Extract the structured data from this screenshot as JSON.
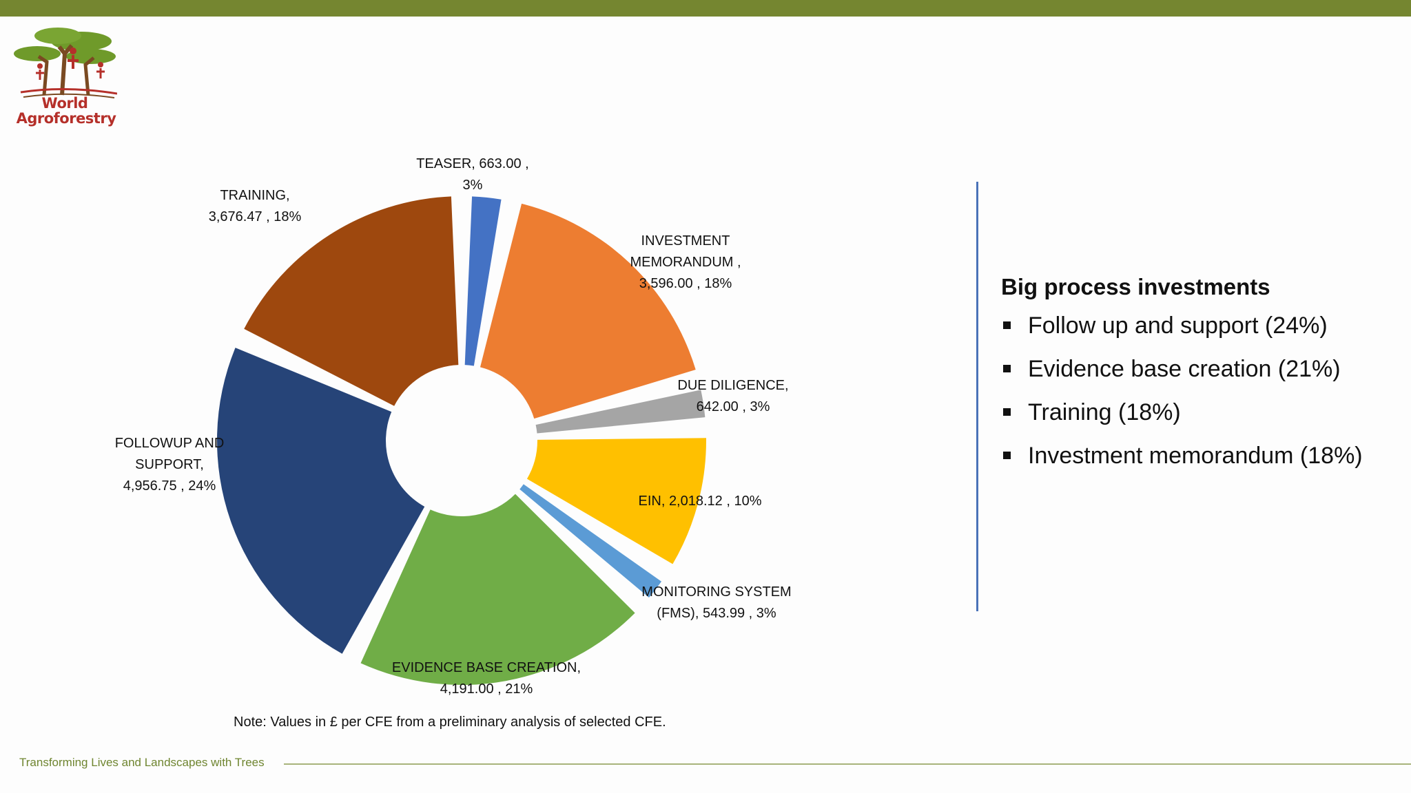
{
  "colors": {
    "top_bar": "#758630",
    "accent_line": "#4a72b8",
    "footer_text": "#6f8530"
  },
  "logo": {
    "line1": "World",
    "line2": "Agroforestry"
  },
  "chart_data": {
    "type": "pie",
    "exploded": true,
    "slices": [
      {
        "name": "TEASER",
        "value": 663.0,
        "percent": 3,
        "color": "#4472c4",
        "label_lines": [
          "TEASER,  663.00 ,",
          "3%"
        ]
      },
      {
        "name": "INVESTMENT MEMORANDUM",
        "value": 3596.0,
        "percent": 18,
        "color": "#ed7d31",
        "label_lines": [
          "INVESTMENT",
          "MEMORANDUM ,",
          "3,596.00 , 18%"
        ]
      },
      {
        "name": "DUE DILIGENCE",
        "value": 642.0,
        "percent": 3,
        "color": "#a5a5a5",
        "label_lines": [
          "DUE DILIGENCE,",
          "642.00 , 3%"
        ]
      },
      {
        "name": "EIN",
        "value": 2018.12,
        "percent": 10,
        "color": "#ffc000",
        "label_lines": [
          "EIN,  2,018.12 , 10%"
        ]
      },
      {
        "name": "MONITORING SYSTEM (FMS)",
        "value": 543.99,
        "percent": 3,
        "color": "#5b9bd5",
        "label_lines": [
          "MONITORING SYSTEM",
          "(FMS),  543.99 , 3%"
        ]
      },
      {
        "name": "EVIDENCE BASE CREATION",
        "value": 4191.0,
        "percent": 21,
        "color": "#70ad47",
        "label_lines": [
          "EVIDENCE BASE CREATION,",
          "4,191.00 , 21%"
        ]
      },
      {
        "name": "FOLLOWUP AND SUPPORT",
        "value": 4956.75,
        "percent": 24,
        "color": "#264478",
        "label_lines": [
          "FOLLOWUP AND",
          "SUPPORT,",
          "4,956.75 , 24%"
        ]
      },
      {
        "name": "TRAINING",
        "value": 3676.47,
        "percent": 18,
        "color": "#9e480e",
        "label_lines": [
          "TRAINING,",
          "3,676.47 , 18%"
        ]
      }
    ]
  },
  "note": "Note: Values in £ per CFE from a preliminary analysis of selected CFE.",
  "panel": {
    "title": "Big process investments",
    "bullets": [
      "Follow up and support (24%)",
      "Evidence base creation (21%)",
      "Training (18%)",
      "Investment memorandum (18%)"
    ]
  },
  "footer": {
    "tagline": "Transforming Lives and Landscapes with Trees"
  }
}
